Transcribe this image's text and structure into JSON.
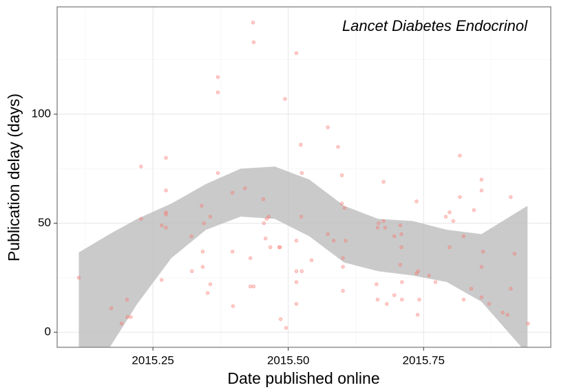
{
  "chart_data": {
    "type": "scatter",
    "annotation": "Lancet Diabetes Endocrinol",
    "x_label": "Date published online",
    "y_label": "Publication delay (days)",
    "xlim": [
      2015.073,
      2015.985
    ],
    "ylim": [
      -6.9,
      149.2
    ],
    "xticks": [
      2015.25,
      {
        "value": 2015.5,
        "label": "2015.50"
      },
      2015.75
    ],
    "yticks": [
      0,
      50,
      100
    ],
    "x_minor_grid": [
      2015.125,
      2015.375,
      2015.625,
      2015.875
    ],
    "y_minor_grid": [
      25,
      75,
      125
    ],
    "grid": true,
    "point_color": "#f8766d",
    "band_color": "#bdbdbd",
    "x": [
      2015.113,
      2015.173,
      2015.192,
      2015.202,
      2015.203,
      2015.209,
      2015.228,
      2015.228,
      2015.266,
      2015.266,
      2015.274,
      2015.274,
      2015.274,
      2015.274,
      2015.274,
      2015.321,
      2015.322,
      2015.34,
      2015.342,
      2015.342,
      2015.344,
      2015.351,
      2015.356,
      2015.356,
      2015.37,
      2015.37,
      2015.37,
      2015.397,
      2015.397,
      2015.398,
      2015.42,
      2015.43,
      2015.43,
      2015.435,
      2015.436,
      2015.436,
      2015.454,
      2015.455,
      2015.458,
      2015.46,
      2015.464,
      2015.467,
      2015.483,
      2015.485,
      2015.486,
      2015.494,
      2015.496,
      2015.515,
      2015.515,
      2015.515,
      2015.515,
      2015.515,
      2015.523,
      2015.524,
      2015.525,
      2015.525,
      2015.543,
      2015.573,
      2015.573,
      2015.584,
      2015.592,
      2015.599,
      2015.599,
      2015.601,
      2015.601,
      2015.601,
      2015.604,
      2015.606,
      2015.663,
      2015.665,
      2015.665,
      2015.667,
      2015.676,
      2015.676,
      2015.679,
      2015.682,
      2015.696,
      2015.696,
      2015.707,
      2015.709,
      2015.709,
      2015.707,
      2015.71,
      2015.71,
      2015.737,
      2015.737,
      2015.74,
      2015.742,
      2015.739,
      2015.76,
      2015.772,
      2015.791,
      2015.798,
      2015.798,
      2015.805,
      2015.817,
      2015.817,
      2015.824,
      2015.824,
      2015.838,
      2015.843,
      2015.857,
      2015.857,
      2015.857,
      2015.857,
      2015.86,
      2015.871,
      2015.896,
      2015.905,
      2015.911,
      2015.911,
      2015.918,
      2015.943
    ],
    "values": [
      25,
      11,
      4,
      15,
      7,
      7,
      76,
      52,
      49,
      24,
      80,
      65,
      55,
      54,
      48,
      44,
      28,
      58,
      37,
      30,
      50,
      18,
      22,
      53,
      117,
      110,
      73,
      64,
      37,
      12,
      66,
      34,
      21,
      142,
      133,
      21,
      61,
      50,
      43,
      52,
      53,
      39,
      39,
      39,
      6,
      107,
      2,
      128,
      42,
      28,
      23,
      13,
      86,
      53,
      73,
      28,
      33,
      94,
      45,
      42,
      85,
      72,
      59,
      34,
      30,
      19,
      57,
      42,
      22,
      15,
      48,
      50,
      51,
      69,
      48,
      13,
      44,
      17,
      49,
      39,
      45,
      31,
      23,
      15,
      60,
      27,
      28,
      15,
      8,
      26,
      23,
      53,
      55,
      39,
      51,
      81,
      62,
      44,
      15,
      20,
      56,
      16,
      30,
      70,
      65,
      37,
      13,
      9,
      8,
      62,
      20,
      36,
      4
    ],
    "band": {
      "x": [
        2015.113,
        2015.17,
        2015.221,
        2015.284,
        2015.348,
        2015.412,
        2015.475,
        2015.539,
        2015.603,
        2015.666,
        2015.73,
        2015.793,
        2015.857,
        2015.942
      ],
      "lower": [
        -25,
        -7,
        13,
        34,
        47,
        53,
        52,
        44,
        32,
        28,
        26,
        23,
        14,
        -10
      ],
      "upper": [
        36.6,
        45,
        52,
        59,
        68,
        75,
        76,
        70,
        58,
        52,
        51,
        47,
        45,
        58
      ]
    }
  }
}
